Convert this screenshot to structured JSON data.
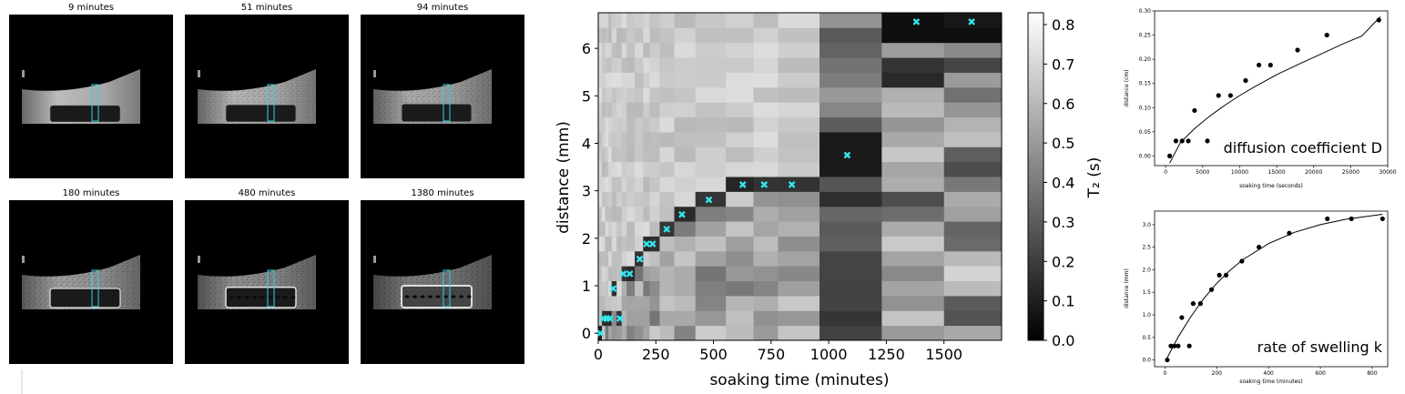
{
  "mri_panels": [
    {
      "title": "9 minutes",
      "stage": 0.02
    },
    {
      "title": "51 minutes",
      "stage": 0.15
    },
    {
      "title": "94 minutes",
      "stage": 0.3
    },
    {
      "title": "180 minutes",
      "stage": 0.5
    },
    {
      "title": "480 minutes",
      "stage": 0.72
    },
    {
      "title": "1380 minutes",
      "stage": 1.0
    }
  ],
  "chart_data": [
    {
      "type": "heatmap",
      "xlabel": "soaking time (minutes)",
      "ylabel": "distance (mm)",
      "xlim": [
        0,
        1750
      ],
      "ylim": [
        -0.15,
        6.75
      ],
      "xticks": [
        "0",
        "250",
        "500",
        "750",
        "1000",
        "1250",
        "1500"
      ],
      "yticks": [
        "0",
        "1",
        "2",
        "3",
        "4",
        "5",
        "6"
      ],
      "colorbar": {
        "label": "T₂ (s)",
        "range": [
          0,
          0.83
        ],
        "ticks": [
          "0.0",
          "0.1",
          "0.2",
          "0.3",
          "0.4",
          "0.5",
          "0.6",
          "0.7",
          "0.8"
        ],
        "colormap": "gray"
      },
      "front_markers": {
        "color": "#33e6f0",
        "x": [
          9,
          23,
          37,
          51,
          65,
          94,
          109,
          137,
          180,
          210,
          236,
          297,
          363,
          480,
          627,
          720,
          840,
          1080,
          1380,
          1620
        ],
        "y": [
          0,
          0.31,
          0.31,
          0.31,
          0.94,
          0.31,
          1.25,
          1.25,
          1.56,
          1.88,
          1.88,
          2.19,
          2.5,
          2.81,
          3.13,
          3.13,
          3.13,
          3.75,
          6.56,
          6.56
        ]
      }
    },
    {
      "type": "scatter",
      "annotation": "diffusion coefficient D",
      "xlabel": "soaking time (seconds)",
      "ylabel": "distance (cm)",
      "xlim": [
        -1500,
        30000
      ],
      "ylim": [
        -0.02,
        0.3
      ],
      "xticks": [
        "0",
        "5000",
        "10000",
        "15000",
        "20000",
        "25000",
        "30000"
      ],
      "yticks": [
        "0.00",
        "0.05",
        "0.10",
        "0.15",
        "0.20",
        "0.25",
        "0.30"
      ],
      "x": [
        540,
        1380,
        2220,
        3060,
        3900,
        5640,
        7140,
        8760,
        10800,
        12600,
        14160,
        17820,
        21780,
        28800
      ],
      "y": [
        0.0,
        0.031,
        0.031,
        0.031,
        0.094,
        0.031,
        0.125,
        0.125,
        0.156,
        0.188,
        0.188,
        0.219,
        0.25,
        0.281
      ],
      "fit": {
        "type": "sqrt",
        "points": [
          [
            540,
            -0.015
          ],
          [
            2000,
            0.028
          ],
          [
            4000,
            0.058
          ],
          [
            6000,
            0.083
          ],
          [
            8000,
            0.105
          ],
          [
            10000,
            0.125
          ],
          [
            12000,
            0.143
          ],
          [
            15000,
            0.168
          ],
          [
            18000,
            0.19
          ],
          [
            21000,
            0.211
          ],
          [
            24000,
            0.232
          ],
          [
            26500,
            0.248
          ],
          [
            29000,
            0.288
          ]
        ]
      }
    },
    {
      "type": "scatter",
      "annotation": "rate of swelling k",
      "xlabel": "soaking time (minutes)",
      "ylabel": "distance (mm)",
      "xlim": [
        -40,
        860
      ],
      "ylim": [
        -0.15,
        3.3
      ],
      "xticks": [
        "0",
        "200",
        "400",
        "600",
        "800"
      ],
      "yticks": [
        "0.0",
        "0.5",
        "1.0",
        "1.5",
        "2.0",
        "2.5",
        "3.0"
      ],
      "x": [
        9,
        23,
        37,
        51,
        65,
        94,
        109,
        137,
        180,
        210,
        236,
        297,
        363,
        480,
        627,
        720,
        840
      ],
      "y": [
        0.0,
        0.31,
        0.31,
        0.31,
        0.94,
        0.31,
        1.25,
        1.25,
        1.56,
        1.88,
        1.88,
        2.19,
        2.5,
        2.81,
        3.13,
        3.13,
        3.13
      ],
      "fit": {
        "type": "exponential",
        "points": [
          [
            9,
            0.05
          ],
          [
            50,
            0.5
          ],
          [
            100,
            0.96
          ],
          [
            150,
            1.36
          ],
          [
            200,
            1.7
          ],
          [
            250,
            1.98
          ],
          [
            300,
            2.22
          ],
          [
            400,
            2.58
          ],
          [
            500,
            2.83
          ],
          [
            600,
            3.0
          ],
          [
            700,
            3.12
          ],
          [
            840,
            3.23
          ]
        ]
      }
    }
  ]
}
